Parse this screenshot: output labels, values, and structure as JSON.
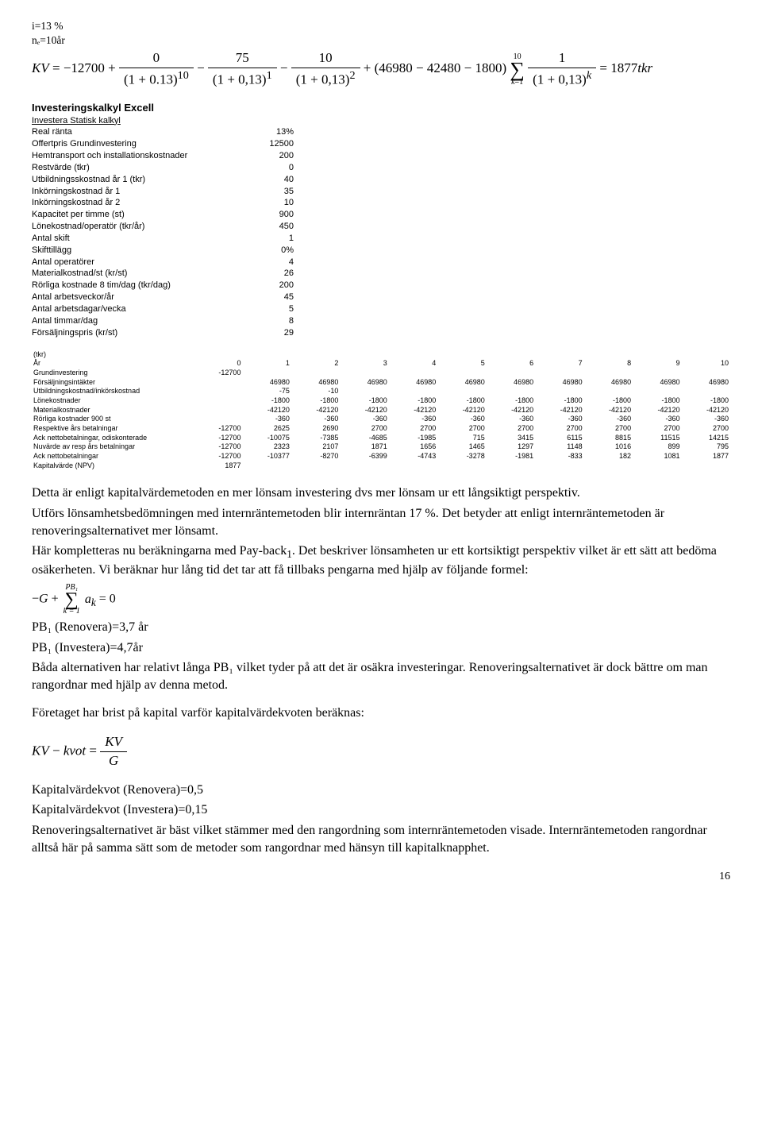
{
  "pre": {
    "line1": "i=13 %",
    "line2": "nₑ=10år"
  },
  "formula1": "KV = −12700 + 0 / (1 + 0.13)^10 − 75 / (1 + 0,13)^1 − 10 / (1 + 0,13)^2 + (46980 − 42480 − 1800) Σ_{k=1}^{10} 1 / (1 + 0,13)^k = 1877 tkr",
  "excel": {
    "title": "Investeringskalkyl Excell",
    "sub": "Investera Statisk kalkyl",
    "rows": [
      [
        "Real ränta",
        "13%"
      ],
      [
        "",
        ""
      ],
      [
        "Offertpris Grundinvestering",
        "12500"
      ],
      [
        "Hemtransport och installationskostnader",
        "200"
      ],
      [
        "Restvärde (tkr)",
        "0"
      ],
      [
        "Utbildningsskostnad år 1 (tkr)",
        "40"
      ],
      [
        "Inkörningskostnad år 1",
        "35"
      ],
      [
        "Inkörningskostnad år 2",
        "10"
      ],
      [
        "Kapacitet per timme (st)",
        "900"
      ],
      [
        "Lönekostnad/operatör (tkr/år)",
        "450"
      ],
      [
        "Antal skift",
        "1"
      ],
      [
        "Skifttillägg",
        "0%"
      ],
      [
        "Antal operatörer",
        "4"
      ],
      [
        "Materialkostnad/st (kr/st)",
        "26"
      ],
      [
        "Rörliga kostnade 8 tim/dag (tkr/dag)",
        "200"
      ],
      [
        "Antal arbetsveckor/år",
        "45"
      ],
      [
        "Antal arbetsdagar/vecka",
        "5"
      ],
      [
        "Antal timmar/dag",
        "8"
      ],
      [
        "Försäljningspris (kr/st)",
        "29"
      ]
    ]
  },
  "table": {
    "unit": "(tkr)",
    "yearLabel": "År",
    "years": [
      "0",
      "1",
      "2",
      "3",
      "4",
      "5",
      "6",
      "7",
      "8",
      "9",
      "10"
    ],
    "rows": [
      {
        "lab": "Grundinvestering",
        "v": [
          "-12700",
          "",
          "",
          "",
          "",
          "",
          "",
          "",
          "",
          "",
          ""
        ]
      },
      {
        "lab": "Försäljningsintäkter",
        "v": [
          "",
          "46980",
          "46980",
          "46980",
          "46980",
          "46980",
          "46980",
          "46980",
          "46980",
          "46980",
          "46980"
        ]
      },
      {
        "lab": "Utbildningskostnad/inkörskostnad",
        "v": [
          "",
          "-75",
          "-10",
          "",
          "",
          "",
          "",
          "",
          "",
          "",
          ""
        ]
      },
      {
        "lab": "Lönekostnader",
        "v": [
          "",
          "-1800",
          "-1800",
          "-1800",
          "-1800",
          "-1800",
          "-1800",
          "-1800",
          "-1800",
          "-1800",
          "-1800"
        ]
      },
      {
        "lab": "Materialkostnader",
        "v": [
          "",
          "-42120",
          "-42120",
          "-42120",
          "-42120",
          "-42120",
          "-42120",
          "-42120",
          "-42120",
          "-42120",
          "-42120"
        ]
      },
      {
        "lab": "Rörliga kostnader 900 st",
        "v": [
          "",
          "-360",
          "-360",
          "-360",
          "-360",
          "-360",
          "-360",
          "-360",
          "-360",
          "-360",
          "-360"
        ]
      },
      {
        "lab": "Respektive års betalningar",
        "v": [
          "-12700",
          "2625",
          "2690",
          "2700",
          "2700",
          "2700",
          "2700",
          "2700",
          "2700",
          "2700",
          "2700"
        ]
      },
      {
        "lab": "Ack nettobetalningar, odiskonterade",
        "v": [
          "-12700",
          "-10075",
          "-7385",
          "-4685",
          "-1985",
          "715",
          "3415",
          "6115",
          "8815",
          "11515",
          "14215"
        ]
      },
      {
        "lab": "Nuvärde av resp års betalningar",
        "v": [
          "-12700",
          "2323",
          "2107",
          "1871",
          "1656",
          "1465",
          "1297",
          "1148",
          "1016",
          "899",
          "795"
        ]
      },
      {
        "lab": "Ack nettobetalningar",
        "v": [
          "-12700",
          "-10377",
          "-8270",
          "-6399",
          "-4743",
          "-3278",
          "-1981",
          "-833",
          "182",
          "1081",
          "1877"
        ]
      },
      {
        "lab": "Kapitalvärde (NPV)",
        "v": [
          "1877",
          "",
          "",
          "",
          "",
          "",
          "",
          "",
          "",
          "",
          ""
        ]
      }
    ]
  },
  "body": {
    "p1": "Detta är enligt kapitalvärdemetoden en mer lönsam investering dvs mer lönsam ur ett långsiktigt perspektiv.",
    "p2a": "Utförs lönsamhetsbedömningen med internräntemetoden blir internräntan 17 %. Det betyder att enligt internräntemetoden är renoveringsalternativet mer lönsamt.",
    "p3a": "Här kompletteras nu beräkningarna med Pay-back",
    "p3sub": "1",
    "p3b": ". Det beskriver lönsamheten ur ett kortsiktigt perspektiv vilket är ett sätt att bedöma osäkerheten. Vi beräknar hur lång tid det tar att få tillbaks pengarna med hjälp av följande formel:",
    "sumUpper": "PB₁",
    "sumLower": "k = 1",
    "formula2": "−G + Σ aₖ = 0",
    "pb1": "PB₁ (Renovera)=3,7 år",
    "pb2": "PB₁ (Investera)=4,7år",
    "p4": "Båda alternativen har relativt långa PB₁ vilket tyder på att det är osäkra investeringar. Renoveringsalternativet är dock bättre om man rangordnar med hjälp av denna metod.",
    "p5": "Företaget har brist på kapital varför kapitalvärdekvoten beräknas:",
    "kvkvot": "KV − kvot = KV / G",
    "kv1": "Kapitalvärdekvot (Renovera)=0,5",
    "kv2": "Kapitalvärdekvot (Investera)=0,15",
    "p6": "Renoveringsalternativet är bäst vilket stämmer med den rangordning som internräntemetoden visade. Internräntemetoden rangordnar alltså här på samma sätt som de metoder som rangordnar med hänsyn till kapitalknapphet."
  },
  "pageNo": "16"
}
